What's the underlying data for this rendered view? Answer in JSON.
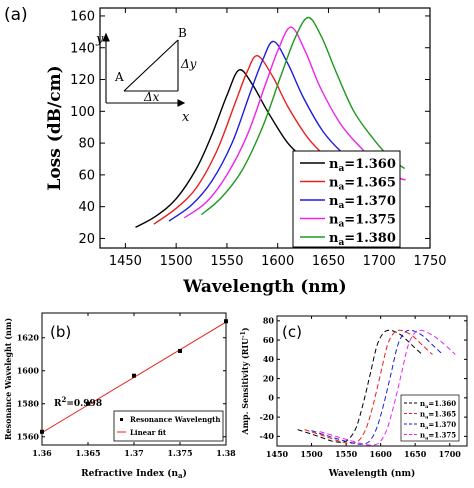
{
  "panels": {
    "a": "(a)",
    "b": "(b)",
    "c": "(c)"
  },
  "inset": {
    "y": "y",
    "x": "x",
    "A": "A",
    "B": "B",
    "dy": "Δy",
    "dx": "Δx"
  },
  "chart_data": [
    {
      "panel": "a",
      "type": "line",
      "xlabel": "Wavelength (nm)",
      "ylabel": "Loss (dB/cm)",
      "xlim": [
        1425,
        1750
      ],
      "ylim": [
        14,
        165
      ],
      "xticks": [
        1450,
        1500,
        1550,
        1600,
        1650,
        1700,
        1750
      ],
      "yticks": [
        20,
        40,
        60,
        80,
        100,
        120,
        140,
        160
      ],
      "legend_position": "bottom-right",
      "series": [
        {
          "name": "na=1.360",
          "legend_prefix": "n",
          "legend_sub": "a",
          "legend_value": "=1.360",
          "color": "#000000",
          "x": [
            1460,
            1480,
            1500,
            1520,
            1535,
            1550,
            1562,
            1575,
            1590,
            1610,
            1630,
            1650,
            1670,
            1680
          ],
          "y": [
            27,
            34,
            45,
            64,
            85,
            110,
            126,
            117,
            100,
            80,
            68,
            57,
            51,
            50
          ]
        },
        {
          "name": "na=1.365",
          "legend_prefix": "n",
          "legend_sub": "a",
          "legend_value": "=1.365",
          "color": "#e8201c",
          "x": [
            1478,
            1500,
            1520,
            1540,
            1558,
            1570,
            1580,
            1595,
            1610,
            1630,
            1650,
            1670,
            1690,
            1698
          ],
          "y": [
            29,
            39,
            52,
            75,
            105,
            125,
            135,
            122,
            103,
            83,
            70,
            60,
            54,
            53
          ]
        },
        {
          "name": "na=1.370",
          "legend_prefix": "n",
          "legend_sub": "a",
          "legend_value": "=1.370",
          "color": "#1c1ce0",
          "x": [
            1493,
            1515,
            1535,
            1555,
            1572,
            1585,
            1596,
            1610,
            1625,
            1645,
            1665,
            1685,
            1705,
            1712
          ],
          "y": [
            31,
            41,
            56,
            80,
            110,
            132,
            144,
            130,
            109,
            87,
            73,
            62,
            56,
            55
          ]
        },
        {
          "name": "na=1.375",
          "legend_prefix": "n",
          "legend_sub": "a",
          "legend_value": "=1.375",
          "color": "#ee22ee",
          "x": [
            1508,
            1530,
            1550,
            1570,
            1588,
            1600,
            1613,
            1627,
            1642,
            1662,
            1682,
            1702,
            1720,
            1726
          ],
          "y": [
            33,
            43,
            60,
            85,
            117,
            138,
            153,
            138,
            115,
            92,
            77,
            65,
            58,
            57
          ]
        },
        {
          "name": "na=1.380",
          "legend_prefix": "n",
          "legend_sub": "a",
          "legend_value": "=1.380",
          "color": "#1e9a1e",
          "x": [
            1525,
            1545,
            1565,
            1585,
            1603,
            1617,
            1630,
            1643,
            1658,
            1675,
            1695,
            1712,
            1725
          ],
          "y": [
            35,
            46,
            63,
            90,
            122,
            146,
            159,
            147,
            124,
            100,
            82,
            70,
            64
          ]
        }
      ]
    },
    {
      "panel": "b",
      "type": "scatter",
      "xlabel": "Refractive Index (na)",
      "ylabel": "Resonance Waveleght (nm)",
      "xlim": [
        1.36,
        1.38
      ],
      "ylim": [
        1555,
        1635
      ],
      "xticks": [
        "1.36",
        "1.365",
        "1.37",
        "1.375",
        "1.38"
      ],
      "yticks": [
        1560,
        1580,
        1600,
        1620
      ],
      "annotation": "R²=0.998",
      "annotation_base": "R",
      "annotation_sup": "2",
      "annotation_rest": "=0.998",
      "legend_position": "bottom-right",
      "series": [
        {
          "name": "Resonance Wavelength",
          "color": "#000000",
          "x": [
            1.36,
            1.365,
            1.37,
            1.375,
            1.38
          ],
          "y": [
            1563,
            1580,
            1597,
            1612,
            1630
          ]
        },
        {
          "name": "Linear fit",
          "color": "#e8201c",
          "x": [
            1.36,
            1.38
          ],
          "y": [
            1562.5,
            1629.5
          ]
        }
      ]
    },
    {
      "panel": "c",
      "type": "line",
      "xlabel": "Wavelength (nm)",
      "ylabel": "Amp. Sensitivity (RIU⁻¹)",
      "xlim": [
        1450,
        1725
      ],
      "ylim": [
        -50,
        85
      ],
      "xticks": [
        1450,
        1500,
        1550,
        1600,
        1650,
        1700
      ],
      "yticks": [
        -40,
        -20,
        0,
        20,
        40,
        60,
        80
      ],
      "legend_position": "bottom-right",
      "series": [
        {
          "name": "na=1.360",
          "legend_prefix": "n",
          "legend_sub": "a",
          "legend_value": "=1.360",
          "color": "#000000",
          "x": [
            1480,
            1510,
            1530,
            1545,
            1555,
            1565,
            1575,
            1585,
            1595,
            1605,
            1615,
            1630,
            1645,
            1660
          ],
          "y": [
            -33,
            -40,
            -45,
            -46,
            -42,
            -30,
            -5,
            25,
            55,
            68,
            70,
            65,
            55,
            45
          ]
        },
        {
          "name": "na=1.365",
          "legend_prefix": "n",
          "legend_sub": "a",
          "legend_value": "=1.365",
          "color": "#e8201c",
          "x": [
            1490,
            1520,
            1545,
            1560,
            1570,
            1580,
            1590,
            1600,
            1610,
            1620,
            1630,
            1645,
            1660,
            1675
          ],
          "y": [
            -33,
            -40,
            -46,
            -47,
            -43,
            -30,
            -5,
            25,
            55,
            68,
            70,
            65,
            55,
            45
          ]
        },
        {
          "name": "na=1.370",
          "legend_prefix": "n",
          "legend_sub": "a",
          "legend_value": "=1.370",
          "color": "#1c1ce0",
          "x": [
            1500,
            1530,
            1560,
            1575,
            1585,
            1595,
            1605,
            1615,
            1625,
            1635,
            1645,
            1660,
            1675,
            1690
          ],
          "y": [
            -34,
            -41,
            -47,
            -48,
            -44,
            -30,
            -5,
            25,
            55,
            68,
            70,
            65,
            55,
            45
          ]
        },
        {
          "name": "na=1.375",
          "legend_prefix": "n",
          "legend_sub": "a",
          "legend_value": "=1.375",
          "color": "#ee22ee",
          "x": [
            1512,
            1545,
            1575,
            1590,
            1600,
            1610,
            1620,
            1630,
            1640,
            1650,
            1660,
            1675,
            1690,
            1708
          ],
          "y": [
            -35,
            -42,
            -48,
            -49,
            -45,
            -31,
            -5,
            25,
            55,
            68,
            70,
            65,
            57,
            45
          ]
        }
      ]
    }
  ]
}
